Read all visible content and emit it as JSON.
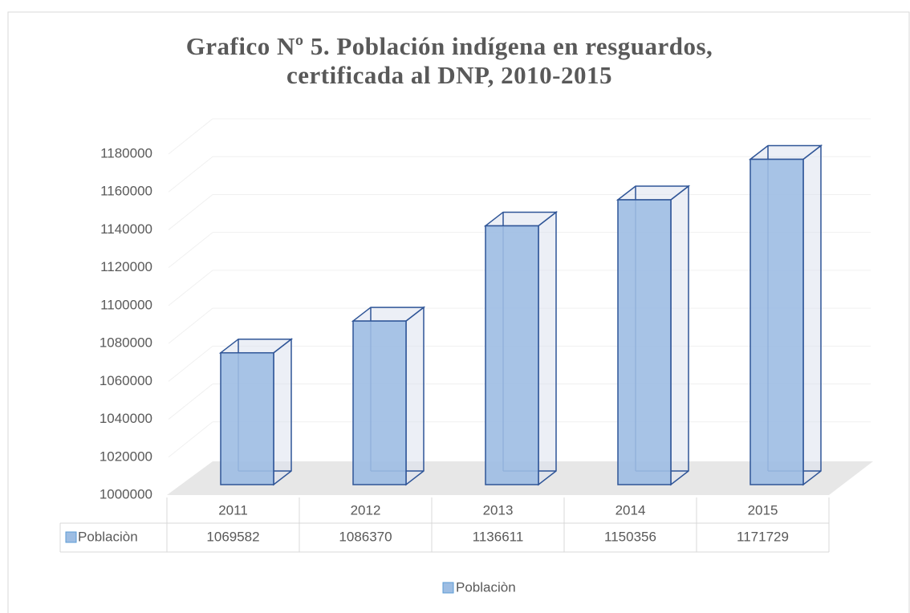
{
  "chart_data": {
    "type": "bar3d",
    "title": "Grafico Nº 5. Población indígena en resguardos, certificada al DNP, 2010-2015",
    "categories": [
      "2011",
      "2012",
      "2013",
      "2014",
      "2015"
    ],
    "series": [
      {
        "name": "Poblaciòn",
        "color": "#9dbde3",
        "values": [
          1069582,
          1086370,
          1136611,
          1150356,
          1171729
        ]
      }
    ],
    "ylim": [
      1000000,
      1180000
    ],
    "yticks": [
      1000000,
      1020000,
      1040000,
      1060000,
      1080000,
      1100000,
      1120000,
      1140000,
      1160000,
      1180000
    ],
    "grid": true,
    "data_table": true,
    "legend": "bottom"
  }
}
